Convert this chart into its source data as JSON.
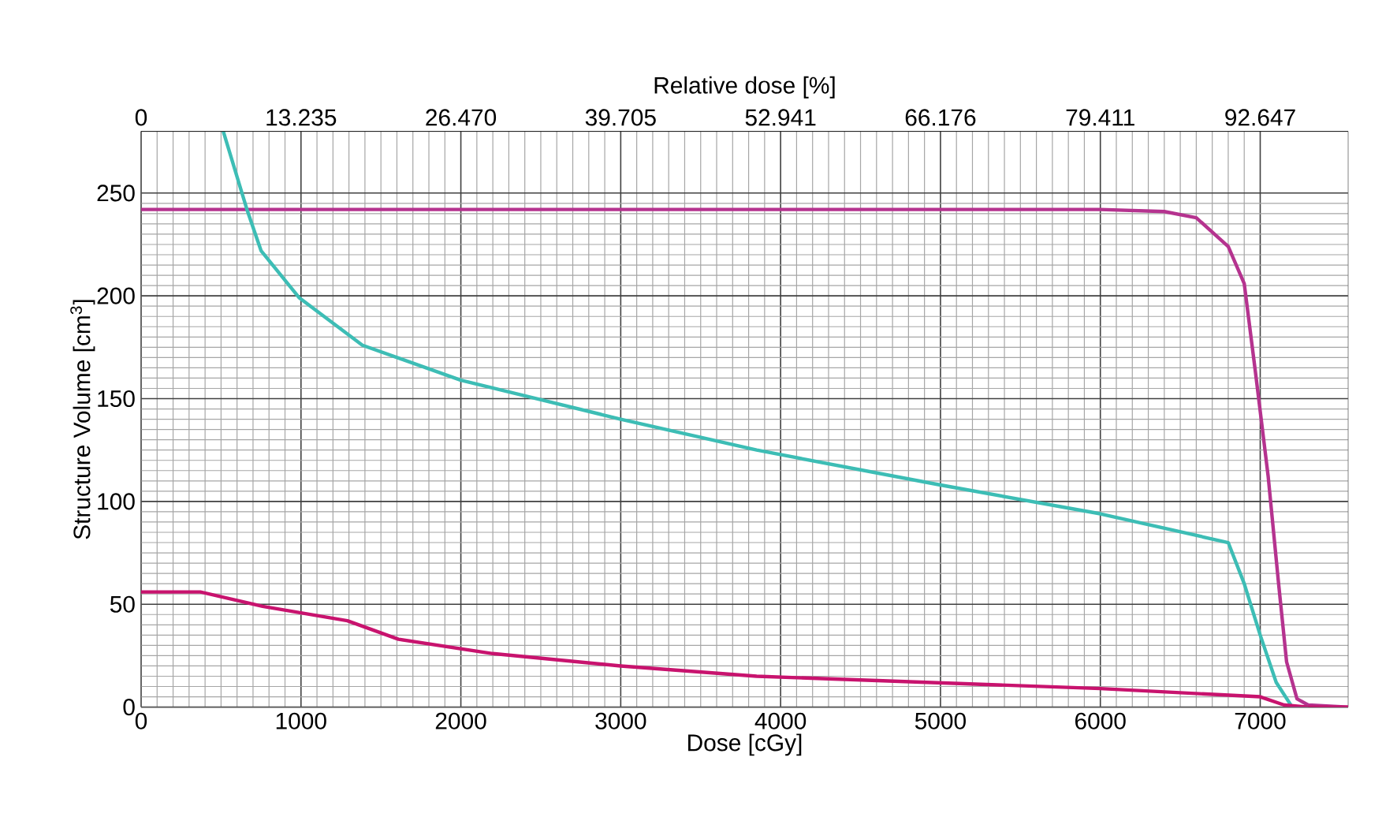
{
  "chart_data": {
    "type": "line",
    "xlabel": "Dose [cGy]",
    "ylabel": "Structure Volume [cm$^{3}$]",
    "x2label": "Relative dose [%]",
    "xlim": [
      0,
      7550
    ],
    "ylim": [
      0,
      280
    ],
    "x2lim": [
      0,
      99.924
    ],
    "xticks": [
      0,
      1000,
      2000,
      3000,
      4000,
      5000,
      6000,
      7000
    ],
    "yticks": [
      0,
      50,
      100,
      150,
      200,
      250
    ],
    "x2ticks": [
      0,
      13.235,
      {
        "value": 26.47,
        "label": "26.470"
      },
      39.705,
      52.941,
      66.176,
      79.411,
      92.647
    ],
    "grid": true,
    "series": [
      {
        "color": "#b5338f",
        "x": [
          0,
          6000,
          6400,
          6600,
          6800,
          6900,
          6970,
          7050,
          7115,
          7165,
          7230,
          7300,
          7550
        ],
        "values": [
          242,
          242,
          241,
          238,
          224,
          206,
          163,
          112,
          60,
          22,
          4,
          1,
          0
        ]
      },
      {
        "color": "#3dbdb5",
        "x": [
          514,
          662,
          750,
          990,
          1384,
          2000,
          3000,
          3850,
          5000,
          6000,
          6800,
          6900,
          7000,
          7100,
          7200,
          7300
        ],
        "values": [
          280,
          242,
          222,
          199,
          176,
          159,
          140,
          125,
          108,
          94,
          80,
          60,
          35,
          12,
          0,
          0
        ]
      },
      {
        "color": "#c8136e",
        "x": [
          0,
          370,
          760,
          1290,
          1610,
          2200,
          3000,
          3850,
          6000,
          7000,
          7150,
          7300,
          7550
        ],
        "values": [
          56,
          56,
          49,
          42,
          33,
          26,
          20,
          15,
          9,
          5,
          1,
          0,
          0
        ]
      }
    ]
  }
}
